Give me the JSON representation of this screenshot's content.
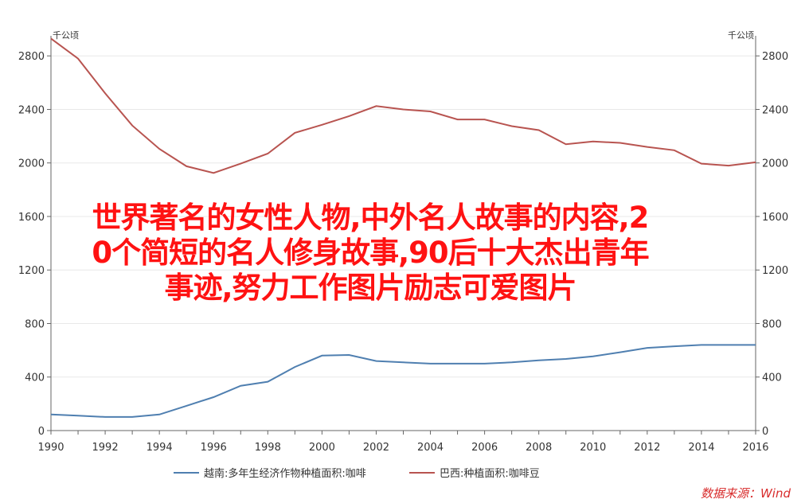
{
  "chart_data": {
    "type": "line",
    "unit_left": "千公顷",
    "unit_right": "千公顷",
    "x": [
      1990,
      1991,
      1992,
      1993,
      1994,
      1995,
      1996,
      1997,
      1998,
      1999,
      2000,
      2001,
      2002,
      2003,
      2004,
      2005,
      2006,
      2007,
      2008,
      2009,
      2010,
      2011,
      2012,
      2013,
      2014,
      2015,
      2016
    ],
    "xlim": [
      1990,
      2016
    ],
    "x_ticks": [
      1990,
      1992,
      1994,
      1996,
      1998,
      2000,
      2002,
      2004,
      2006,
      2008,
      2010,
      2012,
      2014,
      2016
    ],
    "ylim": [
      0,
      2950
    ],
    "y_ticks": [
      0,
      400,
      800,
      1200,
      1600,
      2000,
      2400,
      2800
    ],
    "grid": true,
    "legend_position": "bottom",
    "series": [
      {
        "name": "越南:多年生经济作物种植面积:咖啡",
        "color": "#4f7fb0",
        "values": [
          120,
          112,
          102,
          102,
          120,
          185,
          250,
          335,
          365,
          475,
          560,
          565,
          520,
          510,
          500,
          500,
          500,
          510,
          525,
          535,
          555,
          585,
          618,
          630,
          640,
          640,
          640
        ]
      },
      {
        "name": "巴西:种植面积:咖啡豆",
        "color": "#b85450",
        "values": [
          2930,
          2780,
          2520,
          2280,
          2105,
          1975,
          1925,
          1995,
          2070,
          2225,
          2285,
          2350,
          2425,
          2400,
          2385,
          2325,
          2325,
          2275,
          2245,
          2140,
          2160,
          2150,
          2120,
          2095,
          1995,
          1980,
          2005
        ]
      }
    ]
  },
  "overlay": {
    "line1": "世界著名的女性人物,中外名人故事的内容,2",
    "line2": "0个简短的名人修身故事,90后十大杰出青年",
    "line3": "事迹,努力工作图片励志可爱图片"
  },
  "source": "数据来源：Wind"
}
